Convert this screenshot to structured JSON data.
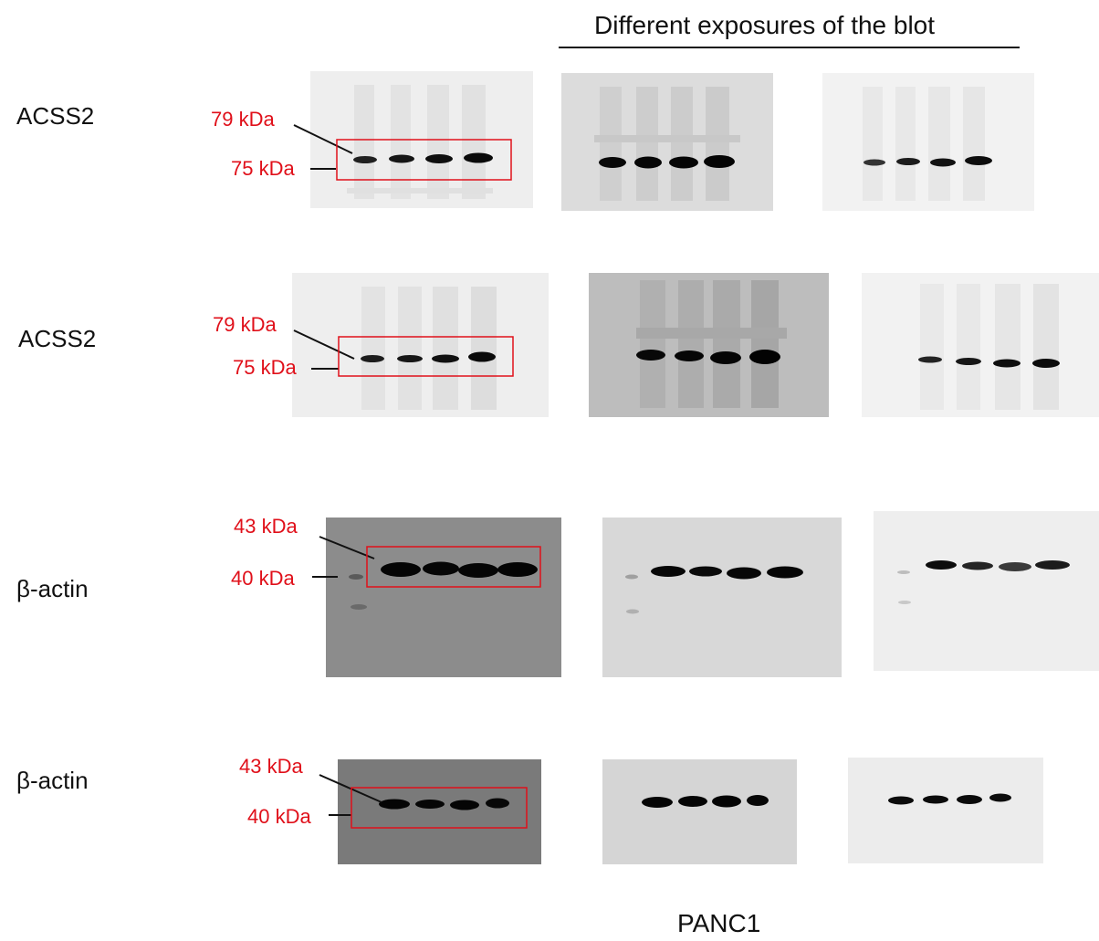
{
  "header": {
    "title": "Different exposures of the blot"
  },
  "footer": {
    "label": "PANC1"
  },
  "colors": {
    "marker_text": "#e0101a",
    "box_outline": "#e0101a",
    "text": "#111111"
  },
  "rows": [
    {
      "label": "ACSS2",
      "markers": [
        "79 kDa",
        "75 kDa"
      ]
    },
    {
      "label": "ACSS2",
      "markers": [
        "79 kDa",
        "75 kDa"
      ]
    },
    {
      "label": "β-actin",
      "markers": [
        "43 kDa",
        "40 kDa"
      ]
    },
    {
      "label": "β-actin",
      "markers": [
        "43 kDa",
        "40 kDa"
      ]
    }
  ]
}
